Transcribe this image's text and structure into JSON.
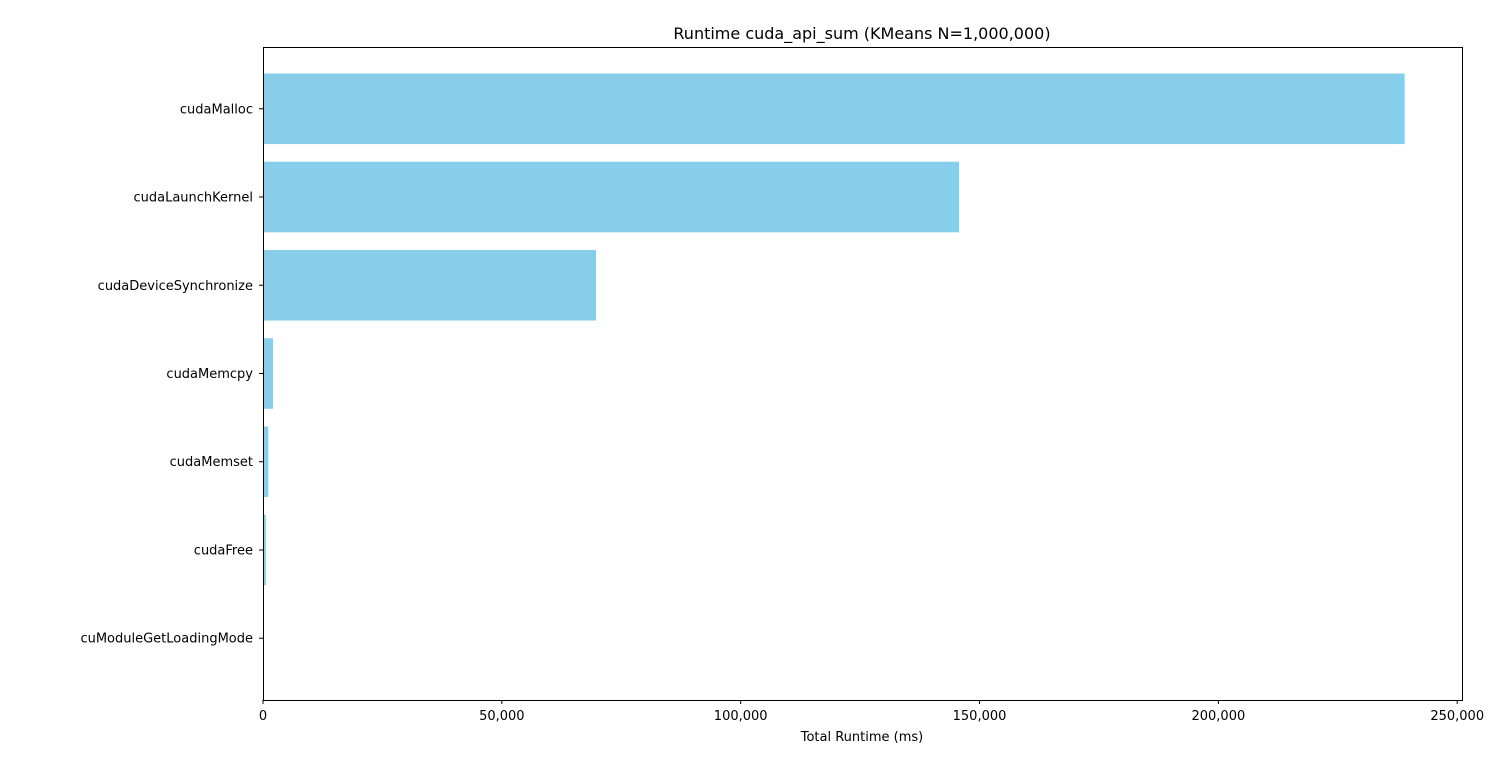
{
  "chart_data": {
    "type": "bar",
    "orientation": "horizontal",
    "title": "Runtime cuda_api_sum (KMeans N=1,000,000)",
    "xlabel": "Total Runtime (ms)",
    "ylabel": "",
    "xlim": [
      0,
      251000
    ],
    "x_ticks": [
      0,
      50000,
      100000,
      150000,
      200000,
      250000
    ],
    "x_tick_labels": [
      "0",
      "50,000",
      "100,000",
      "150,000",
      "200,000",
      "250,000"
    ],
    "categories": [
      "cudaMalloc",
      "cudaLaunchKernel",
      "cudaDeviceSynchronize",
      "cudaMemcpy",
      "cudaMemset",
      "cudaFree",
      "cuModuleGetLoadingMode"
    ],
    "values": [
      239000,
      145700,
      69700,
      2100,
      1100,
      600,
      0
    ],
    "bar_color": "#87ceeb",
    "grid": false
  }
}
